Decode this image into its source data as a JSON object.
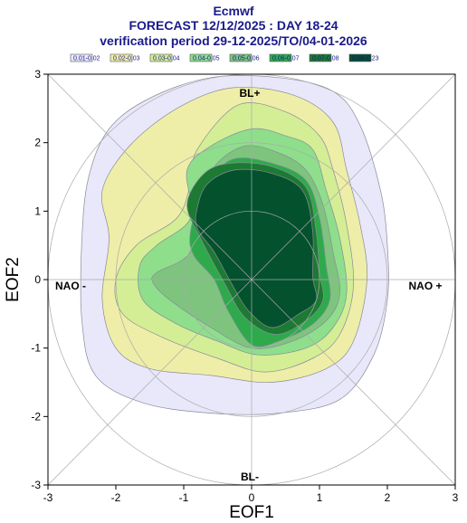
{
  "chart_data": {
    "type": "contour-density",
    "title": "Ecmwf",
    "subtitle": "FORECAST 12/12/2025 : DAY 18-24",
    "period": "verification period 29-12-2025/TO/04-01-2026",
    "xlabel": "EOF1",
    "ylabel": "EOF2",
    "xlim": [
      -3,
      3
    ],
    "ylim": [
      -3,
      3
    ],
    "x_ticks": [
      "-3",
      "-2",
      "-1",
      "0",
      "1",
      "2",
      "3"
    ],
    "y_ticks": [
      "-3",
      "-2",
      "-1",
      "0",
      "1",
      "2",
      "3"
    ],
    "legend_position": "top",
    "legend": [
      {
        "label": "0.01-0.02",
        "color": "#e8e8fa"
      },
      {
        "label": "0.02-0.03",
        "color": "#eeeea8"
      },
      {
        "label": "0.03-0.04",
        "color": "#d4ee96"
      },
      {
        "label": "0.04-0.05",
        "color": "#8ede8c"
      },
      {
        "label": "0.05-0.06",
        "color": "#7ec47e"
      },
      {
        "label": "0.06-0.07",
        "color": "#2eaa4c"
      },
      {
        "label": "0.07-0.08",
        "color": "#1c7a32"
      },
      {
        "label": "0.08-0.23",
        "color": "#04512e"
      }
    ],
    "regime_labels": {
      "top": "BL+",
      "bottom": "BL-",
      "left": "NAO -",
      "right": "NAO +"
    },
    "reference_circles_radius": [
      1,
      2,
      3
    ],
    "contours": [
      {
        "level": "0.01-0.02",
        "points": [
          [
            -2.5,
            0.6
          ],
          [
            -2.4,
            1.5
          ],
          [
            -2.1,
            2.2
          ],
          [
            -1.5,
            2.65
          ],
          [
            -0.6,
            2.95
          ],
          [
            0.4,
            2.95
          ],
          [
            1.2,
            2.75
          ],
          [
            1.6,
            2.25
          ],
          [
            1.9,
            1.3
          ],
          [
            2.0,
            0.5
          ],
          [
            2.0,
            -0.3
          ],
          [
            1.8,
            -1.1
          ],
          [
            1.3,
            -1.75
          ],
          [
            0.4,
            -1.95
          ],
          [
            -0.6,
            -1.95
          ],
          [
            -1.6,
            -1.8
          ],
          [
            -2.3,
            -1.4
          ],
          [
            -2.5,
            -0.6
          ]
        ]
      },
      {
        "level": "0.02-0.03",
        "points": [
          [
            -2.1,
            0.6
          ],
          [
            -2.2,
            1.3
          ],
          [
            -1.8,
            1.95
          ],
          [
            -1.1,
            2.5
          ],
          [
            -0.3,
            2.8
          ],
          [
            0.6,
            2.7
          ],
          [
            1.2,
            2.3
          ],
          [
            1.4,
            1.6
          ],
          [
            1.6,
            0.8
          ],
          [
            1.7,
            0.0
          ],
          [
            1.5,
            -0.9
          ],
          [
            1.1,
            -1.3
          ],
          [
            0.3,
            -1.5
          ],
          [
            -0.6,
            -1.4
          ],
          [
            -1.5,
            -1.3
          ],
          [
            -2.0,
            -1.0
          ],
          [
            -2.2,
            -0.3
          ]
        ]
      },
      {
        "level": "0.03-0.04",
        "points": [
          [
            -1.7,
            0.5
          ],
          [
            -1.1,
            0.9
          ],
          [
            -0.9,
            1.4
          ],
          [
            -0.8,
            1.9
          ],
          [
            -0.2,
            2.55
          ],
          [
            0.5,
            2.45
          ],
          [
            1.0,
            2.1
          ],
          [
            1.2,
            1.6
          ],
          [
            1.4,
            0.8
          ],
          [
            1.5,
            -0.1
          ],
          [
            1.3,
            -0.8
          ],
          [
            0.9,
            -1.15
          ],
          [
            0.2,
            -1.35
          ],
          [
            -0.5,
            -1.15
          ],
          [
            -1.3,
            -0.85
          ],
          [
            -1.9,
            -0.5
          ],
          [
            -2.0,
            0.0
          ]
        ]
      },
      {
        "level": "0.04-0.05",
        "points": [
          [
            -1.4,
            0.5
          ],
          [
            -0.9,
            0.9
          ],
          [
            -0.95,
            1.6
          ],
          [
            -0.6,
            1.95
          ],
          [
            0.0,
            2.2
          ],
          [
            0.5,
            2.1
          ],
          [
            0.9,
            1.9
          ],
          [
            1.1,
            1.3
          ],
          [
            1.3,
            0.6
          ],
          [
            1.4,
            -0.2
          ],
          [
            1.2,
            -0.7
          ],
          [
            0.8,
            -1.0
          ],
          [
            0.1,
            -1.1
          ],
          [
            -0.5,
            -0.9
          ],
          [
            -1.1,
            -0.65
          ],
          [
            -1.6,
            -0.3
          ],
          [
            -1.65,
            0.2
          ]
        ]
      },
      {
        "level": "0.05-0.06",
        "points": [
          [
            -1.4,
            0.1
          ],
          [
            -0.9,
            0.4
          ],
          [
            -0.8,
            1.1
          ],
          [
            -0.55,
            1.65
          ],
          [
            -0.1,
            1.95
          ],
          [
            0.4,
            1.85
          ],
          [
            0.8,
            1.6
          ],
          [
            1.05,
            1.1
          ],
          [
            1.2,
            0.4
          ],
          [
            1.3,
            -0.2
          ],
          [
            1.1,
            -0.6
          ],
          [
            0.6,
            -0.9
          ],
          [
            0.0,
            -1.0
          ],
          [
            -0.6,
            -0.7
          ],
          [
            -1.2,
            -0.3
          ],
          [
            -1.45,
            -0.05
          ]
        ]
      },
      {
        "level": "0.06-0.07",
        "points": [
          [
            -0.9,
            0.7
          ],
          [
            -0.7,
            1.3
          ],
          [
            -0.3,
            1.75
          ],
          [
            0.3,
            1.7
          ],
          [
            0.8,
            1.45
          ],
          [
            1.0,
            0.9
          ],
          [
            1.1,
            0.2
          ],
          [
            1.15,
            -0.3
          ],
          [
            0.9,
            -0.65
          ],
          [
            0.4,
            -0.9
          ],
          [
            0.0,
            -0.95
          ],
          [
            -0.35,
            -0.45
          ],
          [
            -0.55,
            0.0
          ],
          [
            -0.85,
            0.35
          ]
        ]
      },
      {
        "level": "0.07-0.08",
        "points": [
          [
            -0.95,
            1.1
          ],
          [
            -0.7,
            1.55
          ],
          [
            -0.3,
            1.7
          ],
          [
            0.3,
            1.65
          ],
          [
            0.8,
            1.35
          ],
          [
            0.95,
            0.7
          ],
          [
            1.0,
            0.1
          ],
          [
            1.05,
            -0.3
          ],
          [
            0.8,
            -0.6
          ],
          [
            0.35,
            -0.8
          ],
          [
            -0.1,
            -0.55
          ],
          [
            -0.4,
            -0.05
          ],
          [
            -0.75,
            0.6
          ]
        ]
      },
      {
        "level": "0.08-0.23",
        "points": [
          [
            -0.8,
            1.05
          ],
          [
            -0.65,
            1.4
          ],
          [
            -0.25,
            1.6
          ],
          [
            0.3,
            1.55
          ],
          [
            0.75,
            1.3
          ],
          [
            0.9,
            0.7
          ],
          [
            0.9,
            0.05
          ],
          [
            0.95,
            -0.3
          ],
          [
            0.7,
            -0.5
          ],
          [
            0.3,
            -0.7
          ],
          [
            -0.05,
            -0.45
          ],
          [
            -0.3,
            -0.05
          ],
          [
            -0.55,
            0.4
          ],
          [
            -0.8,
            0.75
          ]
        ]
      }
    ]
  }
}
